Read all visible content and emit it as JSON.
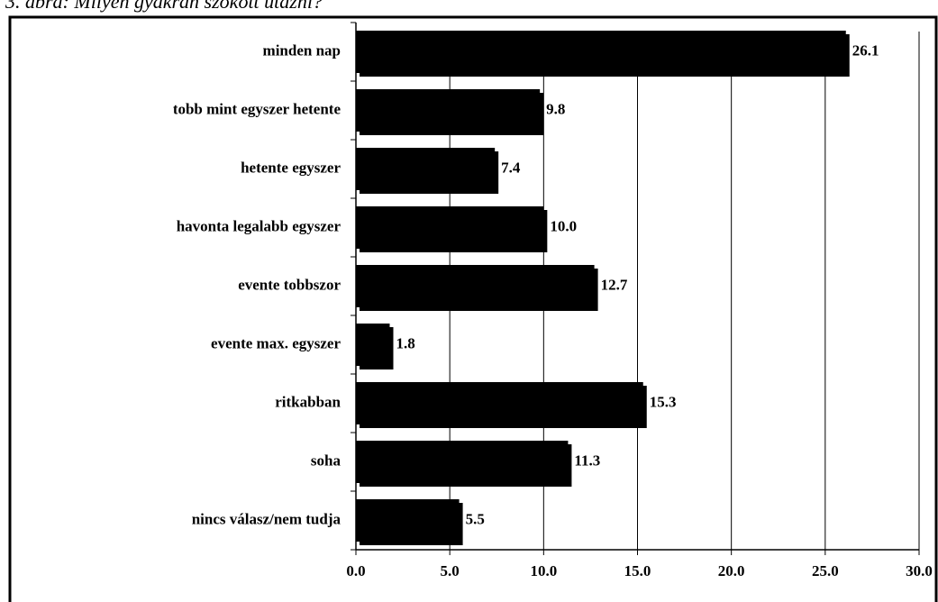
{
  "chart_data": {
    "type": "bar",
    "orientation": "horizontal",
    "title": "3. ábra: Milyen gyakran szokott utazni?",
    "categories": [
      "minden nap",
      "tobb mint egyszer hetente",
      "hetente egyszer",
      "havonta legalabb egyszer",
      "evente tobbszor",
      "evente max. egyszer",
      "ritkabban",
      "soha",
      "nincs válasz/nem tudja"
    ],
    "values": [
      26.1,
      9.8,
      7.4,
      10.0,
      12.7,
      1.8,
      15.3,
      11.3,
      5.5
    ],
    "value_labels": [
      "26.1",
      "9.8",
      "7.4",
      "10.0",
      "12.7",
      "1.8",
      "15.3",
      "11.3",
      "5.5"
    ],
    "color": "#000000",
    "xlim": [
      0,
      30
    ],
    "xticks": [
      {
        "value": 0,
        "label": "0.0"
      },
      {
        "value": 5,
        "label": "5.0"
      },
      {
        "value": 10,
        "label": "10.0"
      },
      {
        "value": 15,
        "label": "15.0"
      },
      {
        "value": 20,
        "label": "20.0"
      },
      {
        "value": 25,
        "label": "25.0"
      },
      {
        "value": 30,
        "label": "30.0"
      }
    ],
    "grid": true
  }
}
